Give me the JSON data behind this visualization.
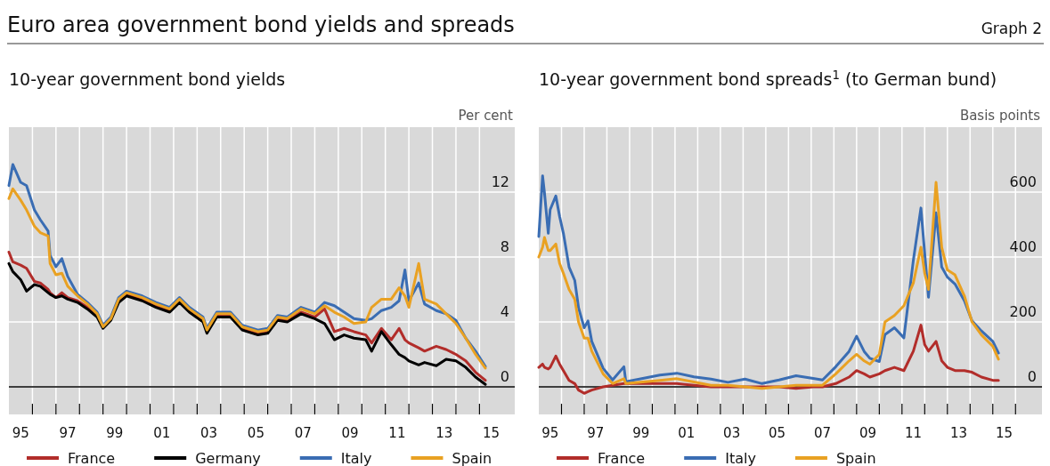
{
  "chart_data": [
    {
      "type": "line",
      "title": "Euro area government bond yields and spreads",
      "subtitle": "10-year government bond yields",
      "ylabel": "Per cent",
      "annotations": [
        "Graph 2"
      ],
      "xlim": [
        "1995",
        "2016-07"
      ],
      "ylim": [
        -1.7,
        16
      ],
      "xticks": [
        {
          "value": "1995-07",
          "label": "95"
        },
        {
          "value": "1997-07",
          "label": "97"
        },
        {
          "value": "1999-07",
          "label": "99"
        },
        {
          "value": "2001-07",
          "label": "01"
        },
        {
          "value": "2003-07",
          "label": "03"
        },
        {
          "value": "2005-07",
          "label": "05"
        },
        {
          "value": "2007-07",
          "label": "07"
        },
        {
          "value": "2009-07",
          "label": "09"
        },
        {
          "value": "2011-07",
          "label": "11"
        },
        {
          "value": "2013-07",
          "label": "13"
        },
        {
          "value": "2015-07",
          "label": "15"
        },
        {
          "value": "1996",
          "label": null
        },
        {
          "value": "1997",
          "label": null
        },
        {
          "value": "1998",
          "label": null
        },
        {
          "value": "1999",
          "label": null
        },
        {
          "value": "2000",
          "label": null
        },
        {
          "value": "2001",
          "label": null
        },
        {
          "value": "2002",
          "label": null
        },
        {
          "value": "2003",
          "label": null
        },
        {
          "value": "2004",
          "label": null
        },
        {
          "value": "2005",
          "label": null
        },
        {
          "value": "2006",
          "label": null
        },
        {
          "value": "2007",
          "label": null
        },
        {
          "value": "2008",
          "label": null
        },
        {
          "value": "2009",
          "label": null
        },
        {
          "value": "2010",
          "label": null
        },
        {
          "value": "2011",
          "label": null
        },
        {
          "value": "2012",
          "label": null
        },
        {
          "value": "2013",
          "label": null
        },
        {
          "value": "2014",
          "label": null
        },
        {
          "value": "2015",
          "label": null
        }
      ],
      "yticks": [
        0,
        4,
        8,
        12
      ],
      "grid": true,
      "legend": "bottom",
      "line_style": "solid",
      "ref_lines": [
        {
          "axis": "y",
          "value": 0,
          "color": "#000000"
        }
      ],
      "x": [
        "1995-01",
        "1995-03",
        "1995-07",
        "1995-10",
        "1996-02",
        "1996-05",
        "1996-09",
        "1996-10",
        "1997-01",
        "1997-04",
        "1997-07",
        "1997-12",
        "1998-05",
        "1998-10",
        "1999-01",
        "1999-05",
        "1999-09",
        "2000-01",
        "2000-09",
        "2001-04",
        "2001-11",
        "2002-04",
        "2002-09",
        "2003-04",
        "2003-06",
        "2003-11",
        "2004-06",
        "2004-12",
        "2005-08",
        "2006-01",
        "2006-06",
        "2006-11",
        "2007-06",
        "2008-01",
        "2008-06",
        "2008-11",
        "2009-04",
        "2009-09",
        "2010-03",
        "2010-06",
        "2010-11",
        "2011-04",
        "2011-08",
        "2011-11",
        "2012-01",
        "2012-06",
        "2012-09",
        "2013-03",
        "2013-08",
        "2014-01",
        "2014-06",
        "2014-11",
        "2015-04"
      ],
      "series": [
        {
          "name": "France",
          "color": "#b22d2a",
          "values": [
            8.3,
            7.7,
            7.5,
            7.3,
            6.5,
            6.4,
            6.0,
            5.8,
            5.5,
            5.8,
            5.5,
            5.3,
            4.9,
            4.4,
            3.7,
            4.2,
            5.3,
            5.7,
            5.4,
            5.0,
            4.7,
            5.3,
            4.7,
            4.1,
            3.4,
            4.4,
            4.4,
            3.6,
            3.3,
            3.4,
            4.2,
            4.1,
            4.6,
            4.3,
            4.8,
            3.4,
            3.6,
            3.4,
            3.2,
            2.7,
            3.6,
            2.9,
            3.6,
            2.9,
            2.7,
            2.4,
            2.2,
            2.5,
            2.3,
            2.0,
            1.6,
            0.9,
            0.4
          ]
        },
        {
          "name": "Germany",
          "color": "#000000",
          "values": [
            7.6,
            7.1,
            6.6,
            5.9,
            6.3,
            6.2,
            5.8,
            5.7,
            5.5,
            5.6,
            5.4,
            5.2,
            4.8,
            4.3,
            3.6,
            4.1,
            5.2,
            5.6,
            5.3,
            4.9,
            4.6,
            5.2,
            4.6,
            4.0,
            3.3,
            4.3,
            4.3,
            3.5,
            3.2,
            3.3,
            4.1,
            4.0,
            4.5,
            4.2,
            3.9,
            2.9,
            3.2,
            3.0,
            2.9,
            2.2,
            3.4,
            2.6,
            2.0,
            1.8,
            1.6,
            1.35,
            1.5,
            1.3,
            1.7,
            1.6,
            1.2,
            0.6,
            0.15
          ]
        },
        {
          "name": "Italy",
          "color": "#3a6db3",
          "values": [
            12.4,
            13.7,
            12.6,
            12.4,
            10.9,
            10.3,
            9.6,
            8.1,
            7.4,
            7.9,
            6.8,
            5.7,
            5.2,
            4.6,
            3.8,
            4.3,
            5.5,
            5.9,
            5.6,
            5.2,
            4.9,
            5.5,
            4.9,
            4.3,
            3.6,
            4.6,
            4.6,
            3.8,
            3.5,
            3.6,
            4.4,
            4.3,
            4.9,
            4.6,
            5.2,
            5.0,
            4.6,
            4.2,
            4.1,
            4.2,
            4.7,
            4.9,
            5.3,
            7.2,
            5.3,
            6.4,
            5.1,
            4.7,
            4.5,
            4.1,
            3.0,
            2.2,
            1.25
          ]
        },
        {
          "name": "Spain",
          "color": "#e9a122",
          "values": [
            11.6,
            12.2,
            11.5,
            10.9,
            9.9,
            9.5,
            9.3,
            7.6,
            6.9,
            7.0,
            6.2,
            5.6,
            5.1,
            4.5,
            3.7,
            4.2,
            5.4,
            5.8,
            5.5,
            5.1,
            4.8,
            5.4,
            4.8,
            4.2,
            3.5,
            4.5,
            4.5,
            3.7,
            3.4,
            3.5,
            4.3,
            4.2,
            4.8,
            4.5,
            5.0,
            4.6,
            4.3,
            3.9,
            4.0,
            4.9,
            5.4,
            5.4,
            6.1,
            5.6,
            4.9,
            7.6,
            5.4,
            5.1,
            4.5,
            3.9,
            3.0,
            2.0,
            1.15
          ]
        }
      ]
    },
    {
      "type": "line",
      "subtitle": "10-year government bond spreads$^{1}$ (to German bund)",
      "ylabel": "Basis points",
      "xlim": [
        "1995",
        "2017-03"
      ],
      "ylim": [
        -85,
        800
      ],
      "xticks": [
        {
          "value": "1995-07",
          "label": "95"
        },
        {
          "value": "1997-07",
          "label": "97"
        },
        {
          "value": "1999-07",
          "label": "99"
        },
        {
          "value": "2001-07",
          "label": "01"
        },
        {
          "value": "2003-07",
          "label": "03"
        },
        {
          "value": "2005-07",
          "label": "05"
        },
        {
          "value": "2007-07",
          "label": "07"
        },
        {
          "value": "2009-07",
          "label": "09"
        },
        {
          "value": "2011-07",
          "label": "11"
        },
        {
          "value": "2013-07",
          "label": "13"
        },
        {
          "value": "2015-07",
          "label": "15"
        },
        {
          "value": "1996",
          "label": null
        },
        {
          "value": "1997",
          "label": null
        },
        {
          "value": "1998",
          "label": null
        },
        {
          "value": "1999",
          "label": null
        },
        {
          "value": "2000",
          "label": null
        },
        {
          "value": "2001",
          "label": null
        },
        {
          "value": "2002",
          "label": null
        },
        {
          "value": "2003",
          "label": null
        },
        {
          "value": "2004",
          "label": null
        },
        {
          "value": "2005",
          "label": null
        },
        {
          "value": "2006",
          "label": null
        },
        {
          "value": "2007",
          "label": null
        },
        {
          "value": "2008",
          "label": null
        },
        {
          "value": "2009",
          "label": null
        },
        {
          "value": "2010",
          "label": null
        },
        {
          "value": "2011",
          "label": null
        },
        {
          "value": "2012",
          "label": null
        },
        {
          "value": "2013",
          "label": null
        },
        {
          "value": "2014",
          "label": null
        },
        {
          "value": "2015",
          "label": null
        },
        {
          "value": "2016",
          "label": null
        }
      ],
      "yticks": [
        0,
        200,
        400,
        600
      ],
      "grid": true,
      "legend": "bottom",
      "line_style": "solid",
      "ref_lines": [
        {
          "axis": "y",
          "value": 0,
          "color": "#000000"
        }
      ],
      "x": [
        "1995-01",
        "1995-03",
        "1995-04",
        "1995-06",
        "1995-07",
        "1995-10",
        "1995-12",
        "1996-02",
        "1996-05",
        "1996-08",
        "1996-10",
        "1997-01",
        "1997-03",
        "1997-05",
        "1997-11",
        "1998-04",
        "1998-10",
        "1998-11",
        "1999-08",
        "2000-05",
        "2001-02",
        "2001-11",
        "2002-08",
        "2003-05",
        "2004-02",
        "2004-11",
        "2005-08",
        "2006-05",
        "2007-02",
        "2007-07",
        "2008-02",
        "2008-09",
        "2009-01",
        "2009-05",
        "2009-08",
        "2010-01",
        "2010-04",
        "2010-09",
        "2011-02",
        "2011-07",
        "2011-11",
        "2012-01",
        "2012-03",
        "2012-07",
        "2012-10",
        "2013-01",
        "2013-05",
        "2013-10",
        "2014-02",
        "2014-07",
        "2015-01",
        "2015-04"
      ],
      "series": [
        {
          "name": "France",
          "color": "#b22d2a",
          "values": [
            60,
            70,
            60,
            55,
            60,
            95,
            70,
            50,
            20,
            10,
            -10,
            -20,
            -15,
            -10,
            0,
            5,
            10,
            10,
            10,
            10,
            10,
            5,
            0,
            0,
            0,
            0,
            0,
            -5,
            0,
            0,
            10,
            30,
            50,
            40,
            30,
            40,
            50,
            60,
            50,
            110,
            190,
            130,
            110,
            140,
            80,
            60,
            50,
            50,
            45,
            30,
            20,
            20
          ]
        },
        {
          "name": "Italy",
          "color": "#3a6db3",
          "values": [
            463,
            650,
            598,
            473,
            546,
            588,
            525,
            473,
            369,
            328,
            244,
            182,
            203,
            140,
            57,
            21,
            62,
            16,
            26,
            36,
            42,
            31,
            24,
            14,
            24,
            10,
            21,
            34,
            26,
            21,
            62,
            109,
            156,
            109,
            88,
            78,
            161,
            182,
            151,
            390,
            551,
            411,
            276,
            536,
            369,
            338,
            317,
            265,
            203,
            172,
            140,
            104
          ]
        },
        {
          "name": "Spain",
          "color": "#e9a122",
          "values": [
            400,
            430,
            460,
            420,
            420,
            440,
            380,
            350,
            300,
            270,
            200,
            150,
            150,
            110,
            40,
            10,
            25,
            10,
            15,
            20,
            25,
            15,
            5,
            5,
            0,
            -5,
            0,
            5,
            5,
            5,
            40,
            80,
            100,
            80,
            70,
            100,
            200,
            220,
            250,
            320,
            430,
            350,
            300,
            630,
            430,
            360,
            345,
            280,
            200,
            160,
            125,
            85
          ]
        }
      ]
    }
  ]
}
